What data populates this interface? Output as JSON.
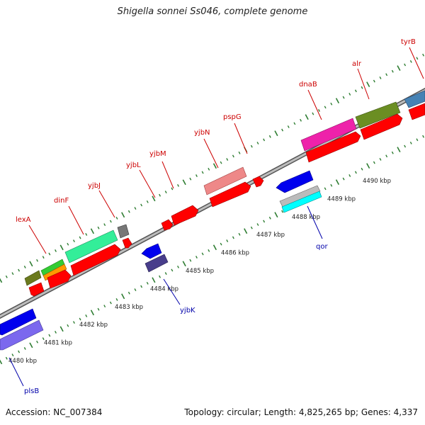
{
  "header": {
    "title": "Shigella sonnei Ss046, complete genome"
  },
  "footer": {
    "accession": "Accession: NC_007384",
    "summary": "Topology: circular; Length: 4,825,265 bp; Genes: 4,337"
  },
  "colors": {
    "forward_label": "#cc0000",
    "reverse_label": "#0000aa",
    "tick": "#2e7d32",
    "backbone": "#8a8a8a"
  },
  "scale": {
    "ticks": [
      {
        "kb": 4480,
        "label": "4480 kbp"
      },
      {
        "kb": 4481,
        "label": "4481 kbp"
      },
      {
        "kb": 4482,
        "label": "4482 kbp"
      },
      {
        "kb": 4483,
        "label": "4483 kbp"
      },
      {
        "kb": 4484,
        "label": "4484 kbp"
      },
      {
        "kb": 4485,
        "label": "4485 kbp"
      },
      {
        "kb": 4486,
        "label": "4486 kbp"
      },
      {
        "kb": 4487,
        "label": "4487 kbp"
      },
      {
        "kb": 4488,
        "label": "4488 kbp"
      },
      {
        "kb": 4489,
        "label": "4489 kbp"
      },
      {
        "kb": 4490,
        "label": "4490 kbp"
      }
    ]
  },
  "gene_labels": [
    {
      "name": "lexA",
      "strand": "+"
    },
    {
      "name": "dinF",
      "strand": "+"
    },
    {
      "name": "yjbJ",
      "strand": "+"
    },
    {
      "name": "yjbL",
      "strand": "+"
    },
    {
      "name": "yjbM",
      "strand": "+"
    },
    {
      "name": "yjbN",
      "strand": "+"
    },
    {
      "name": "pspG",
      "strand": "+"
    },
    {
      "name": "dnaB",
      "strand": "+"
    },
    {
      "name": "alr",
      "strand": "+"
    },
    {
      "name": "tyrB",
      "strand": "+"
    },
    {
      "name": "plsB",
      "strand": "-"
    },
    {
      "name": "yjbK",
      "strand": "-"
    },
    {
      "name": "qor",
      "strand": "-"
    }
  ]
}
